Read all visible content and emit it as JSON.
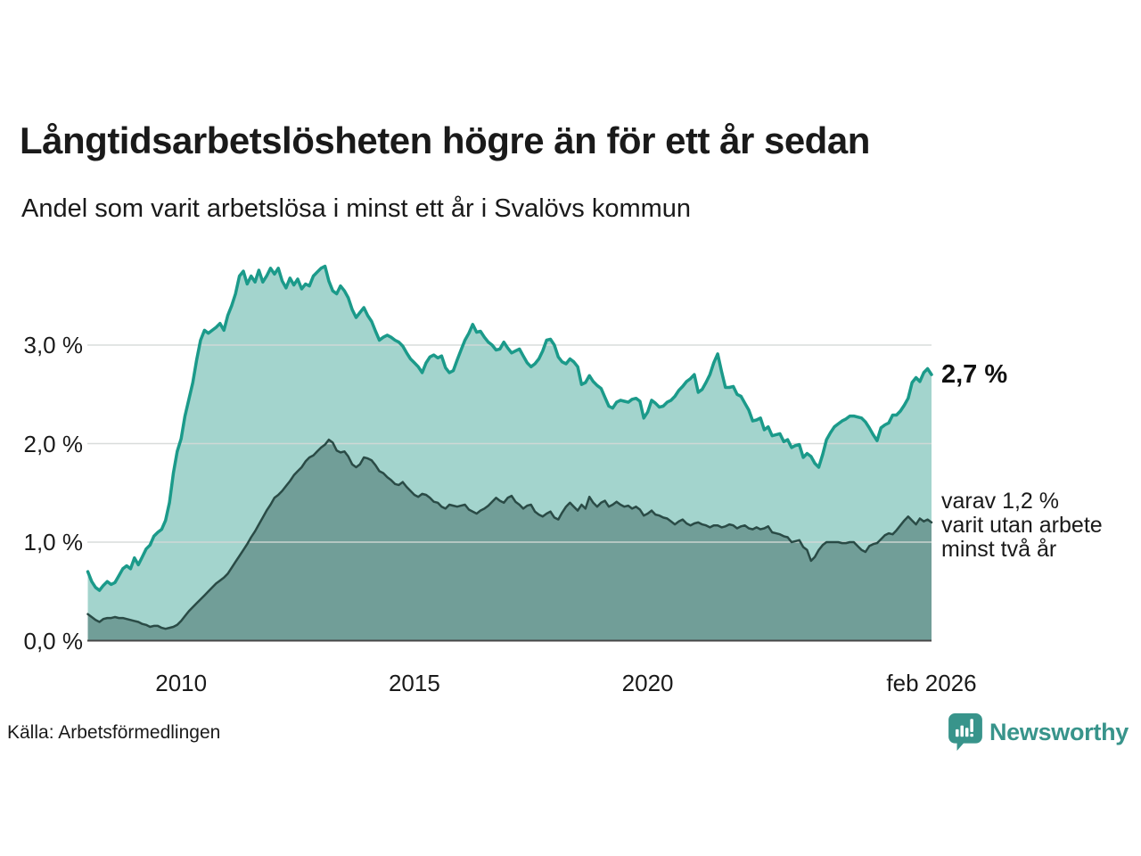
{
  "header": {
    "title": "Långtidsarbetslösheten högre än för ett år sedan",
    "subtitle": "Andel som varit arbetslösa i minst ett år i Svalövs kommun"
  },
  "annotations": {
    "latest_total": "2,7 %",
    "two_year_note": "varav 1,2 %\nvarit utan arbete\nminst två år"
  },
  "footer": {
    "source": "Källa: Arbetsförmedlingen",
    "brand": "Newsworthy"
  },
  "chart_data": {
    "type": "area",
    "title": "Långtidsarbetslösheten högre än för ett år sedan",
    "subtitle": "Andel som varit arbetslösa i minst ett år i Svalövs kommun",
    "unit": "%",
    "frequency": "monthly",
    "x_start": "2008-01",
    "x_end": "2026-02",
    "ylim": [
      0,
      3.95
    ],
    "grid": "horizontal",
    "y_ticks": [
      {
        "label": "3,0 %",
        "value": 3.0
      },
      {
        "label": "2,0 %",
        "value": 2.0
      },
      {
        "label": "1,0 %",
        "value": 1.0
      },
      {
        "label": "0,0 %",
        "value": 0.0
      }
    ],
    "x_ticks": [
      {
        "label": "2010",
        "month_index": 24
      },
      {
        "label": "2015",
        "month_index": 84
      },
      {
        "label": "2020",
        "month_index": 144
      },
      {
        "label": "feb 2026",
        "month_index": 217
      }
    ],
    "colors": {
      "gridline": "#d4d8d7",
      "axis_line": "#474747",
      "accent": "#38948b"
    },
    "series": [
      {
        "name": "Andel som varit arbetslösa i minst ett år",
        "latest_value": 2.7,
        "line_color": "#1b9a8a",
        "fill_color": "#a3d4cd",
        "values": [
          0.7,
          0.6,
          0.54,
          0.51,
          0.56,
          0.6,
          0.57,
          0.59,
          0.66,
          0.73,
          0.76,
          0.73,
          0.84,
          0.77,
          0.85,
          0.93,
          0.97,
          1.06,
          1.1,
          1.13,
          1.22,
          1.4,
          1.7,
          1.92,
          2.05,
          2.28,
          2.45,
          2.62,
          2.85,
          3.05,
          3.15,
          3.12,
          3.15,
          3.18,
          3.22,
          3.15,
          3.3,
          3.4,
          3.52,
          3.7,
          3.75,
          3.62,
          3.7,
          3.64,
          3.76,
          3.64,
          3.7,
          3.78,
          3.72,
          3.78,
          3.65,
          3.58,
          3.68,
          3.61,
          3.67,
          3.57,
          3.62,
          3.6,
          3.7,
          3.74,
          3.78,
          3.8,
          3.65,
          3.55,
          3.52,
          3.6,
          3.55,
          3.48,
          3.36,
          3.28,
          3.33,
          3.38,
          3.3,
          3.24,
          3.14,
          3.05,
          3.08,
          3.1,
          3.08,
          3.05,
          3.03,
          2.99,
          2.92,
          2.86,
          2.82,
          2.78,
          2.72,
          2.82,
          2.88,
          2.9,
          2.87,
          2.89,
          2.77,
          2.72,
          2.74,
          2.85,
          2.95,
          3.05,
          3.12,
          3.21,
          3.13,
          3.14,
          3.08,
          3.03,
          3.0,
          2.95,
          2.96,
          3.03,
          2.97,
          2.92,
          2.94,
          2.96,
          2.89,
          2.82,
          2.78,
          2.81,
          2.86,
          2.94,
          3.05,
          3.06,
          3.0,
          2.88,
          2.83,
          2.81,
          2.86,
          2.83,
          2.78,
          2.6,
          2.62,
          2.69,
          2.63,
          2.59,
          2.56,
          2.47,
          2.38,
          2.36,
          2.42,
          2.44,
          2.43,
          2.42,
          2.45,
          2.46,
          2.43,
          2.26,
          2.32,
          2.44,
          2.41,
          2.37,
          2.38,
          2.42,
          2.44,
          2.48,
          2.54,
          2.58,
          2.63,
          2.66,
          2.7,
          2.52,
          2.55,
          2.62,
          2.7,
          2.82,
          2.91,
          2.73,
          2.57,
          2.57,
          2.58,
          2.5,
          2.48,
          2.41,
          2.34,
          2.23,
          2.24,
          2.26,
          2.14,
          2.17,
          2.08,
          2.09,
          2.1,
          2.02,
          2.04,
          1.96,
          1.98,
          1.99,
          1.86,
          1.9,
          1.87,
          1.8,
          1.76,
          1.89,
          2.04,
          2.11,
          2.17,
          2.2,
          2.23,
          2.25,
          2.28,
          2.28,
          2.27,
          2.26,
          2.22,
          2.16,
          2.09,
          2.03,
          2.16,
          2.19,
          2.21,
          2.29,
          2.29,
          2.33,
          2.39,
          2.46,
          2.62,
          2.67,
          2.63,
          2.72,
          2.76,
          2.7
        ]
      },
      {
        "name": "varav utan arbete minst två år",
        "latest_value": 1.2,
        "line_color": "#2a4b46",
        "fill_color": "#719e98",
        "values": [
          0.27,
          0.24,
          0.21,
          0.19,
          0.22,
          0.23,
          0.23,
          0.24,
          0.23,
          0.23,
          0.22,
          0.21,
          0.2,
          0.19,
          0.17,
          0.16,
          0.14,
          0.15,
          0.15,
          0.13,
          0.12,
          0.13,
          0.14,
          0.16,
          0.2,
          0.25,
          0.3,
          0.34,
          0.38,
          0.42,
          0.46,
          0.5,
          0.54,
          0.58,
          0.61,
          0.64,
          0.68,
          0.74,
          0.8,
          0.86,
          0.92,
          0.98,
          1.05,
          1.11,
          1.18,
          1.25,
          1.32,
          1.38,
          1.45,
          1.48,
          1.52,
          1.57,
          1.62,
          1.68,
          1.72,
          1.76,
          1.82,
          1.86,
          1.88,
          1.92,
          1.96,
          1.99,
          2.04,
          2.01,
          1.93,
          1.91,
          1.92,
          1.87,
          1.79,
          1.76,
          1.79,
          1.86,
          1.85,
          1.83,
          1.78,
          1.72,
          1.7,
          1.66,
          1.63,
          1.59,
          1.58,
          1.61,
          1.56,
          1.52,
          1.48,
          1.46,
          1.49,
          1.48,
          1.45,
          1.41,
          1.4,
          1.36,
          1.34,
          1.38,
          1.37,
          1.36,
          1.37,
          1.38,
          1.33,
          1.31,
          1.29,
          1.32,
          1.34,
          1.37,
          1.41,
          1.45,
          1.42,
          1.4,
          1.45,
          1.47,
          1.41,
          1.38,
          1.34,
          1.37,
          1.38,
          1.31,
          1.28,
          1.26,
          1.29,
          1.31,
          1.25,
          1.23,
          1.3,
          1.36,
          1.4,
          1.36,
          1.32,
          1.38,
          1.34,
          1.46,
          1.4,
          1.36,
          1.4,
          1.42,
          1.36,
          1.38,
          1.41,
          1.38,
          1.36,
          1.37,
          1.34,
          1.36,
          1.33,
          1.27,
          1.29,
          1.32,
          1.28,
          1.27,
          1.25,
          1.24,
          1.21,
          1.18,
          1.21,
          1.23,
          1.19,
          1.17,
          1.19,
          1.2,
          1.18,
          1.17,
          1.15,
          1.17,
          1.17,
          1.15,
          1.16,
          1.18,
          1.17,
          1.14,
          1.16,
          1.17,
          1.14,
          1.13,
          1.15,
          1.13,
          1.14,
          1.16,
          1.1,
          1.09,
          1.08,
          1.06,
          1.05,
          1.0,
          1.01,
          1.02,
          0.95,
          0.92,
          0.81,
          0.85,
          0.92,
          0.97,
          1.0,
          1.0,
          1.0,
          1.0,
          0.99,
          0.99,
          1.0,
          1.0,
          0.96,
          0.92,
          0.9,
          0.96,
          0.98,
          0.99,
          1.03,
          1.07,
          1.09,
          1.08,
          1.12,
          1.17,
          1.22,
          1.26,
          1.22,
          1.18,
          1.24,
          1.21,
          1.23,
          1.2
        ]
      }
    ]
  }
}
